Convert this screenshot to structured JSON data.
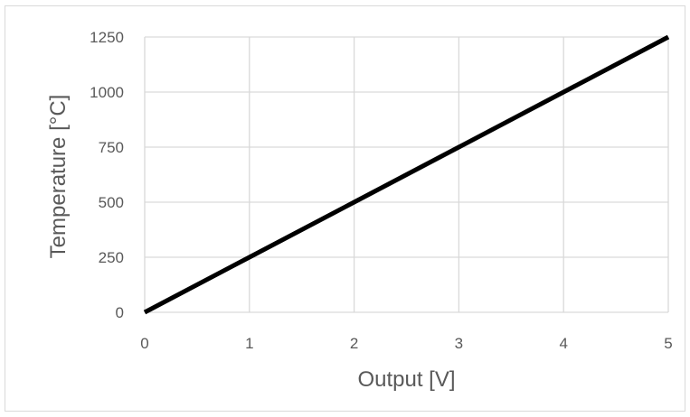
{
  "chart_data": {
    "type": "line",
    "title": "",
    "xlabel": "Output [V]",
    "ylabel": "Temperature [°C]",
    "xlim": [
      0,
      5
    ],
    "ylim": [
      0,
      1250
    ],
    "x_ticks": [
      "0",
      "1",
      "2",
      "3",
      "4",
      "5"
    ],
    "y_ticks": [
      "0",
      "250",
      "500",
      "750",
      "1000",
      "1250"
    ],
    "grid": true,
    "legend": "none",
    "series": [
      {
        "color": "#000000",
        "x": [
          0,
          1,
          2,
          3,
          4,
          5
        ],
        "y": [
          0,
          250,
          500,
          750,
          1000,
          1250
        ]
      }
    ]
  }
}
